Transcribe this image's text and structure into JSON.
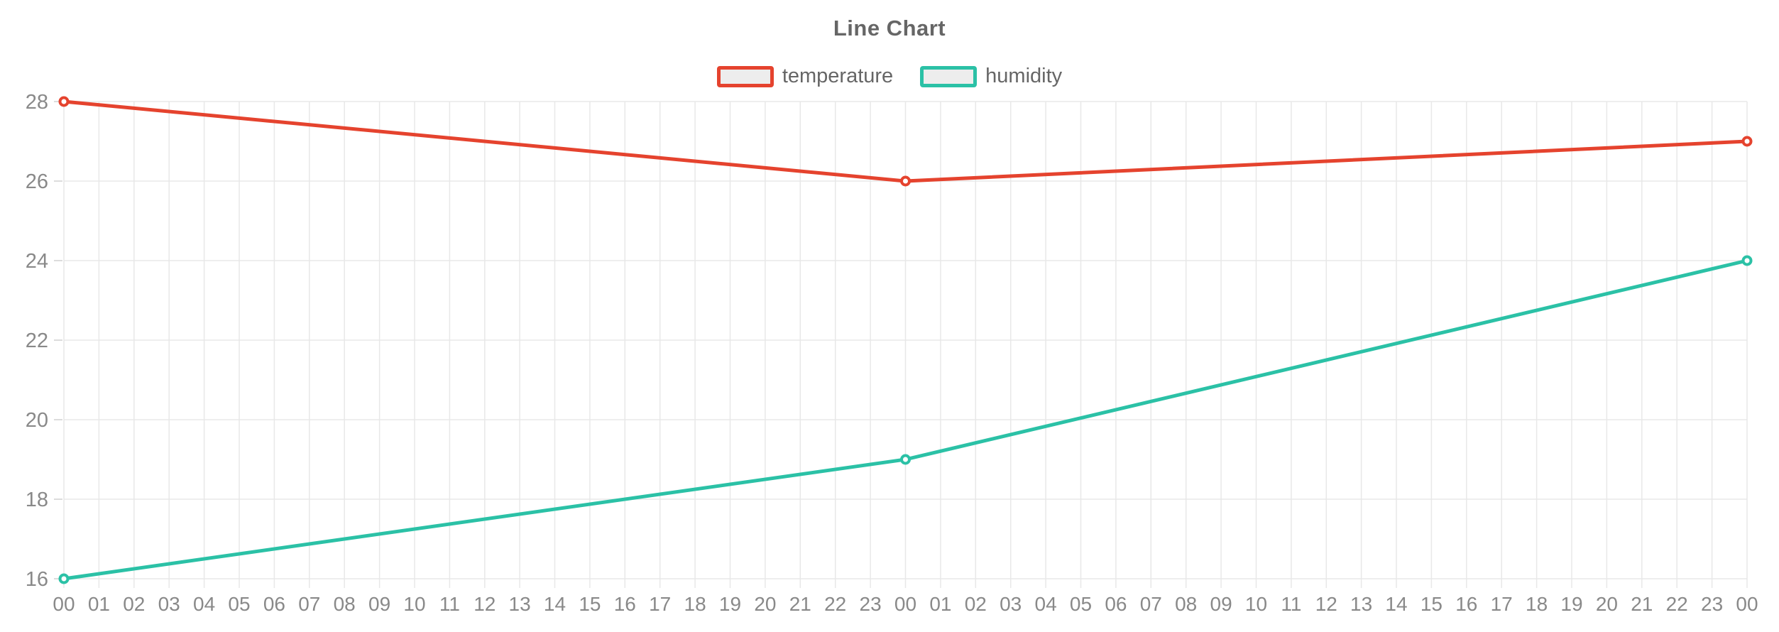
{
  "page": {
    "background": "#ffffff"
  },
  "chart_data": {
    "type": "line",
    "title": "Line Chart",
    "categories": [
      "00",
      "01",
      "02",
      "03",
      "04",
      "05",
      "06",
      "07",
      "08",
      "09",
      "10",
      "11",
      "12",
      "13",
      "14",
      "15",
      "16",
      "17",
      "18",
      "19",
      "20",
      "21",
      "22",
      "23",
      "00",
      "01",
      "02",
      "03",
      "04",
      "05",
      "06",
      "07",
      "08",
      "09",
      "10",
      "11",
      "12",
      "13",
      "14",
      "15",
      "16",
      "17",
      "18",
      "19",
      "20",
      "21",
      "22",
      "23",
      "00"
    ],
    "series": [
      {
        "name": "temperature",
        "color": "#e5432e",
        "points": [
          {
            "category_index": 0,
            "category": "00",
            "value": 28
          },
          {
            "category_index": 24,
            "category": "00",
            "value": 26
          },
          {
            "category_index": 48,
            "category": "00",
            "value": 27
          }
        ]
      },
      {
        "name": "humidity",
        "color": "#2bc1a6",
        "points": [
          {
            "category_index": 0,
            "category": "00",
            "value": 16
          },
          {
            "category_index": 24,
            "category": "00",
            "value": 19
          },
          {
            "category_index": 48,
            "category": "00",
            "value": 24
          }
        ]
      }
    ],
    "y_axis": {
      "min": 16,
      "max": 28,
      "step": 2,
      "tick_labels": [
        "16",
        "18",
        "20",
        "22",
        "24",
        "26",
        "28"
      ]
    },
    "x_axis": {
      "tick_count": 49
    },
    "legend": {
      "position": "top",
      "items": [
        "temperature",
        "humidity"
      ]
    },
    "grid": {
      "horizontal": true,
      "vertical": true
    },
    "theme": {
      "background": "#ffffff",
      "grid_line": "#e8e8e8",
      "axis_tick": "#dcdcdc",
      "axis_label": "#898989",
      "title_text": "#666666",
      "legend_text": "#666666",
      "legend_swatch_fill": "#ededed",
      "marker_fill": "#ffffff"
    }
  }
}
